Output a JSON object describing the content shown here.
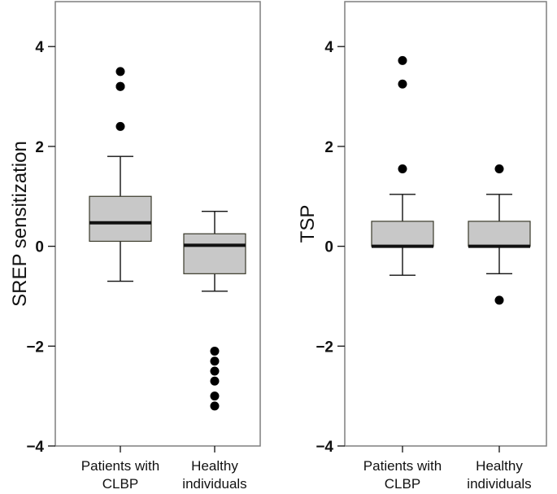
{
  "chart_data": [
    {
      "type": "box",
      "ylabel": "SREP sensitization",
      "ylim": [
        -4,
        4.9
      ],
      "yticks": [
        {
          "value": 4,
          "label": "4"
        },
        {
          "value": 2,
          "label": "2"
        },
        {
          "value": 0,
          "label": "0"
        },
        {
          "value": -2,
          "label": "−2"
        },
        {
          "value": -4,
          "label": "−4"
        }
      ],
      "categories": [
        [
          "Patients with",
          "CLBP"
        ],
        [
          "Healthy",
          "individuals"
        ]
      ],
      "boxes": [
        {
          "min": -0.7,
          "q1": 0.1,
          "median": 0.47,
          "q3": 1.0,
          "max": 1.8,
          "outliers": [
            3.5,
            3.2,
            3.2,
            2.4
          ]
        },
        {
          "min": -0.9,
          "q1": -0.55,
          "median": 0.02,
          "q3": 0.25,
          "max": 0.7,
          "outliers": [
            -2.1,
            -2.3,
            -2.5,
            -2.7,
            -3.0,
            -3.2
          ]
        }
      ]
    },
    {
      "type": "box",
      "ylabel": "TSP",
      "ylim": [
        -4,
        4.9
      ],
      "yticks": [
        {
          "value": 4,
          "label": "4"
        },
        {
          "value": 2,
          "label": "2"
        },
        {
          "value": 0,
          "label": "0"
        },
        {
          "value": -2,
          "label": "−2"
        },
        {
          "value": -4,
          "label": "−4"
        }
      ],
      "categories": [
        [
          "Patients with",
          "CLBP"
        ],
        [
          "Healthy",
          "individuals"
        ]
      ],
      "boxes": [
        {
          "min": -0.58,
          "q1": 0.0,
          "median": 0.0,
          "q3": 0.5,
          "max": 1.04,
          "outliers": [
            3.72,
            3.25,
            1.55
          ]
        },
        {
          "min": -0.55,
          "q1": 0.0,
          "median": 0.0,
          "q3": 0.5,
          "max": 1.04,
          "outliers": [
            1.55,
            -1.08
          ]
        }
      ]
    }
  ],
  "colors": {
    "box_fill": "#c8c8c8",
    "line": "#111111",
    "frame": "#7f7f7f",
    "outlier": "#000000"
  }
}
